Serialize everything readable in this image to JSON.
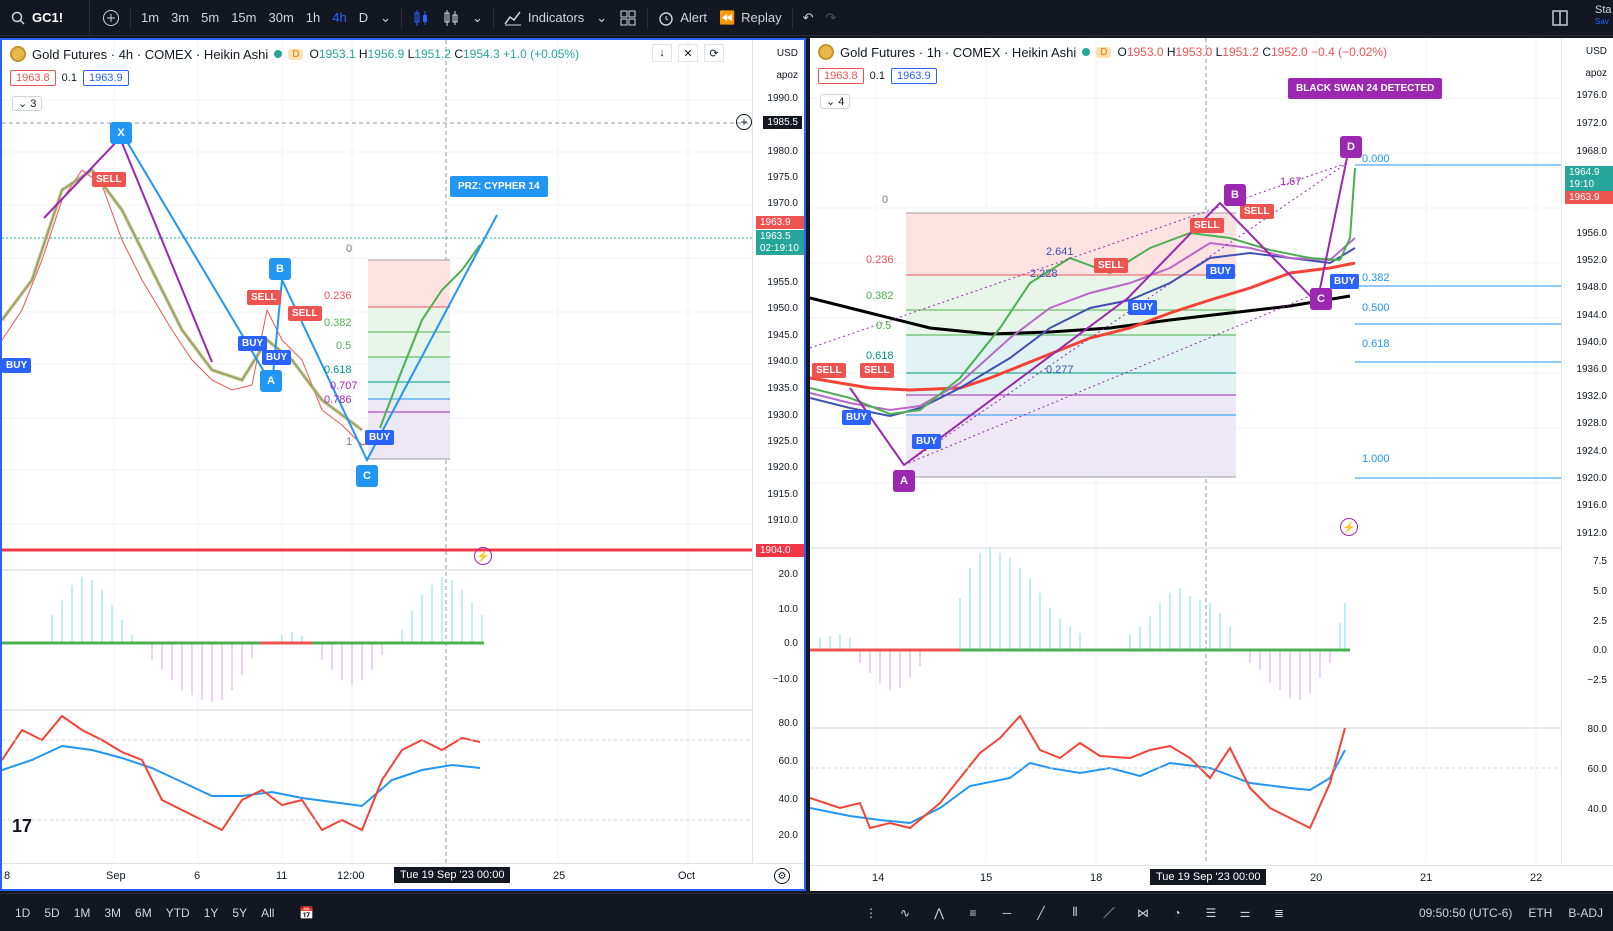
{
  "toolbar": {
    "symbol": "GC1!",
    "intervals": [
      "1m",
      "3m",
      "5m",
      "15m",
      "30m",
      "1h",
      "4h",
      "D"
    ],
    "active_interval": "4h",
    "indicators_label": "Indicators",
    "alert_label": "Alert",
    "replay_label": "Replay",
    "right_text": "Sta",
    "right_sub": "Sav"
  },
  "left": {
    "title": "Gold Futures · 4h · COMEX · Heikin Ashi",
    "d_badge": "D",
    "ohlc": {
      "o": "1953.1",
      "h": "1956.9",
      "l": "1951.2",
      "c": "1954.3",
      "chg": "+1.0 (+0.05%)"
    },
    "bid": "1963.8",
    "step": "0.1",
    "ask": "1963.9",
    "collapse_count": "3",
    "currency": "USD",
    "scale_mode": "apoz",
    "price_ticks": [
      "1990.0",
      "1985.5",
      "1980.0",
      "1975.0",
      "1970.0",
      "1963.9",
      "1963.5",
      "02:19:10",
      "1955.0",
      "1950.0",
      "1945.0",
      "1940.0",
      "1935.0",
      "1930.0",
      "1925.0",
      "1920.0",
      "1915.0",
      "1910.0",
      "1904.0"
    ],
    "macd_ticks": [
      "20.0",
      "10.0",
      "0.0",
      "−10.0"
    ],
    "rsi_ticks": [
      "80.0",
      "60.0",
      "40.0",
      "20.0"
    ],
    "time_labels": [
      "8",
      "Sep",
      "6",
      "11",
      "12:00",
      "25",
      "Oct"
    ],
    "crosshair_time": "Tue 19 Sep '23   00:00",
    "banner": "PRZ: CYPHER 14",
    "points": {
      "x": "X",
      "a": "A",
      "b": "B",
      "c": "C"
    },
    "fib_levels": [
      "0",
      "0.236",
      "0.382",
      "0.5",
      "0.618",
      "0.707",
      "0.786",
      "1"
    ],
    "signals": {
      "sell": "SELL",
      "buy": "BUY"
    }
  },
  "right": {
    "title": "Gold Futures · 1h · COMEX · Heikin Ashi",
    "d_badge": "D",
    "ohlc": {
      "o": "1953.0",
      "h": "1953.0",
      "l": "1951.2",
      "c": "1952.0",
      "chg": "−0.4 (−0.02%)"
    },
    "bid": "1963.8",
    "step": "0.1",
    "ask": "1963.9",
    "collapse_count": "4",
    "currency": "USD",
    "scale_mode": "apoz",
    "price_ticks": [
      "1976.0",
      "1972.0",
      "1968.0",
      "1964.9",
      "19:10",
      "1963.9",
      "1956.0",
      "1952.0",
      "1948.0",
      "1944.0",
      "1940.0",
      "1936.0",
      "1932.0",
      "1928.0",
      "1924.0",
      "1920.0",
      "1916.0",
      "1912.0"
    ],
    "macd_ticks": [
      "7.5",
      "5.0",
      "2.5",
      "0.0",
      "−2.5"
    ],
    "rsi_ticks": [
      "80.0",
      "60.0",
      "40.0"
    ],
    "time_labels": [
      "14",
      "15",
      "18",
      "20",
      "21",
      "22"
    ],
    "crosshair_time": "Tue 19 Sep '23   00:00",
    "banner": "BLACK SWAN 24 DETECTED",
    "points": {
      "a": "A",
      "b": "B",
      "c": "C",
      "d": "D"
    },
    "fib_left": [
      "0",
      "2.641",
      "2.228",
      "0.236",
      "0.382",
      "0.5",
      "0.618",
      "0.277"
    ],
    "fib_right": [
      "0.000",
      "0.382",
      "0.500",
      "0.618",
      "1.000",
      "1.67"
    ],
    "signals": {
      "sell": "SELL",
      "buy": "BUY"
    }
  },
  "bottom": {
    "ranges": [
      "1D",
      "5D",
      "1M",
      "3M",
      "6M",
      "YTD",
      "1Y",
      "5Y",
      "All"
    ],
    "clock": "09:50:50 (UTC-6)",
    "session": "ETH",
    "adj": "B-ADJ"
  },
  "colors": {
    "accent": "#2962ff",
    "up": "#26a69a",
    "down": "#ef5350",
    "purple": "#9c27b0"
  }
}
